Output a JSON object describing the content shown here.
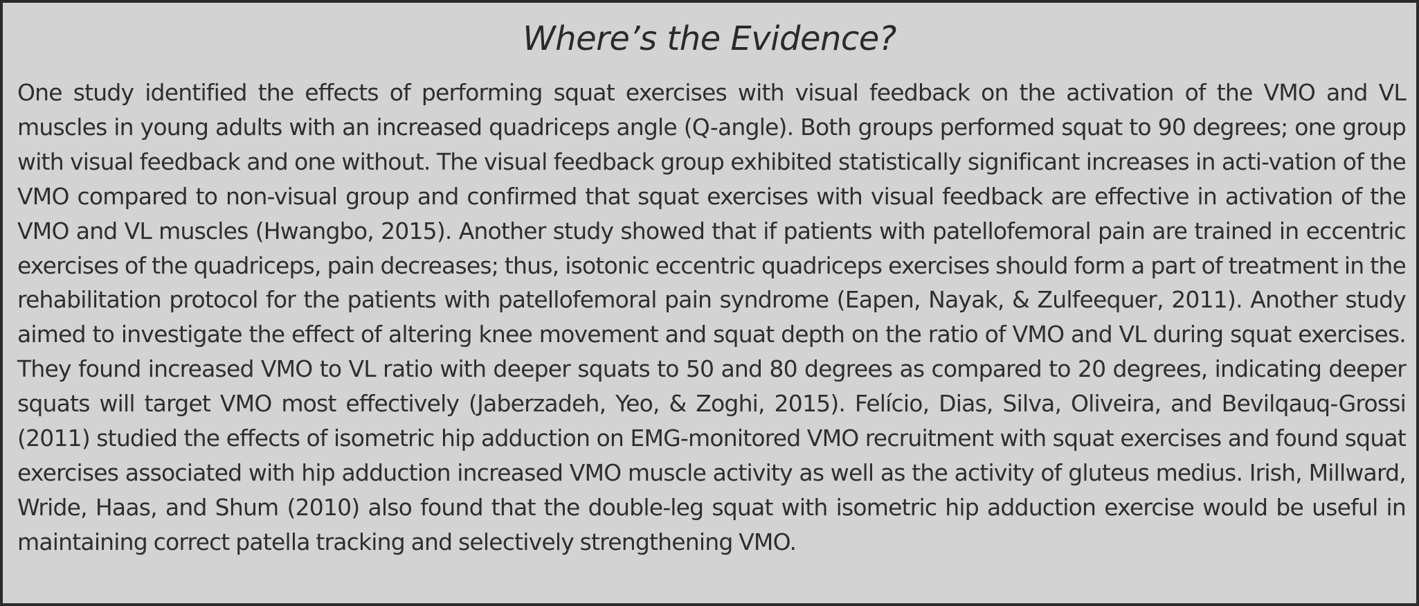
{
  "box": {
    "title": "Where’s the Evidence?",
    "body": "One study identified the effects of performing squat exercises with visual feedback on the activation of the VMO and VL muscles in young adults with an increased quadriceps angle (Q-angle). Both groups performed squat to 90 degrees; one group with visual feedback and one without. The visual feedback group exhibited statistically significant increases in acti-vation of the VMO compared to non-visual group and confirmed that squat exercises with visual feedback are effective in activation of the VMO and VL muscles (Hwangbo, 2015). Another study showed that if patients with patellofemoral pain are trained in eccentric exercises of the quadriceps, pain decreases; thus, isotonic eccentric quadriceps exercises should form a part of treatment in the rehabilitation protocol for the patients with patellofemoral pain syndrome (Eapen, Nayak, & Zulfeequer, 2011). Another study aimed to investigate the effect of altering knee movement and squat depth on the ratio of VMO and VL during squat exercises. They found increased VMO to VL ratio with deeper squats to 50 and 80 degrees as compared to 20 degrees, indicating deeper squats will target VMO most effectively (Jaberzadeh, Yeo, & Zoghi, 2015). Felício, Dias, Silva, Oliveira, and Bevilqauq-Grossi (2011) studied the effects of isometric hip adduction on EMG-monitored VMO recruitment with squat exercises and found squat exercises associated with hip adduction increased VMO muscle activity as well as the activity of gluteus medius. Irish, Millward, Wride, Haas, and Shum (2010) also found that the double-leg squat with isometric hip adduction exercise would be useful in maintaining correct patella tracking and selectively strengthening VMO."
  }
}
